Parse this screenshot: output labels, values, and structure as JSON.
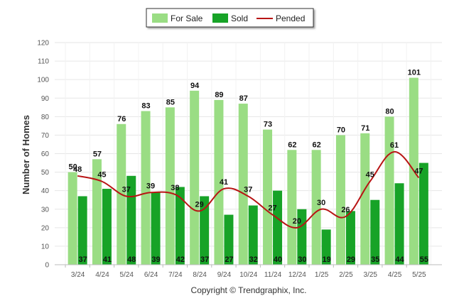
{
  "chart_data": {
    "type": "bar",
    "title": "",
    "xlabel": "",
    "ylabel": "Number of Homes",
    "ylim": [
      0,
      120
    ],
    "yticks": [
      0,
      10,
      20,
      30,
      40,
      50,
      60,
      70,
      80,
      90,
      100,
      110,
      120
    ],
    "grid": true,
    "legend_position": "top-center",
    "categories": [
      "3/24",
      "4/24",
      "5/24",
      "6/24",
      "7/24",
      "8/24",
      "9/24",
      "10/24",
      "11/24",
      "12/24",
      "1/25",
      "2/25",
      "3/25",
      "4/25",
      "5/25"
    ],
    "series": [
      {
        "name": "For Sale",
        "kind": "bar",
        "color": "#9ADD84",
        "values": [
          50,
          57,
          76,
          83,
          85,
          94,
          89,
          87,
          73,
          62,
          62,
          70,
          71,
          80,
          101
        ]
      },
      {
        "name": "Sold",
        "kind": "bar",
        "color": "#17A327",
        "values": [
          37,
          41,
          48,
          39,
          42,
          37,
          27,
          32,
          40,
          30,
          19,
          29,
          35,
          44,
          55
        ]
      },
      {
        "name": "Pended",
        "kind": "line",
        "color": "#B81414",
        "values": [
          48,
          45,
          37,
          39,
          38,
          29,
          41,
          37,
          27,
          20,
          30,
          26,
          45,
          61,
          47
        ]
      }
    ]
  },
  "footer": {
    "copyright": "Copyright © Trendgraphix, Inc."
  }
}
